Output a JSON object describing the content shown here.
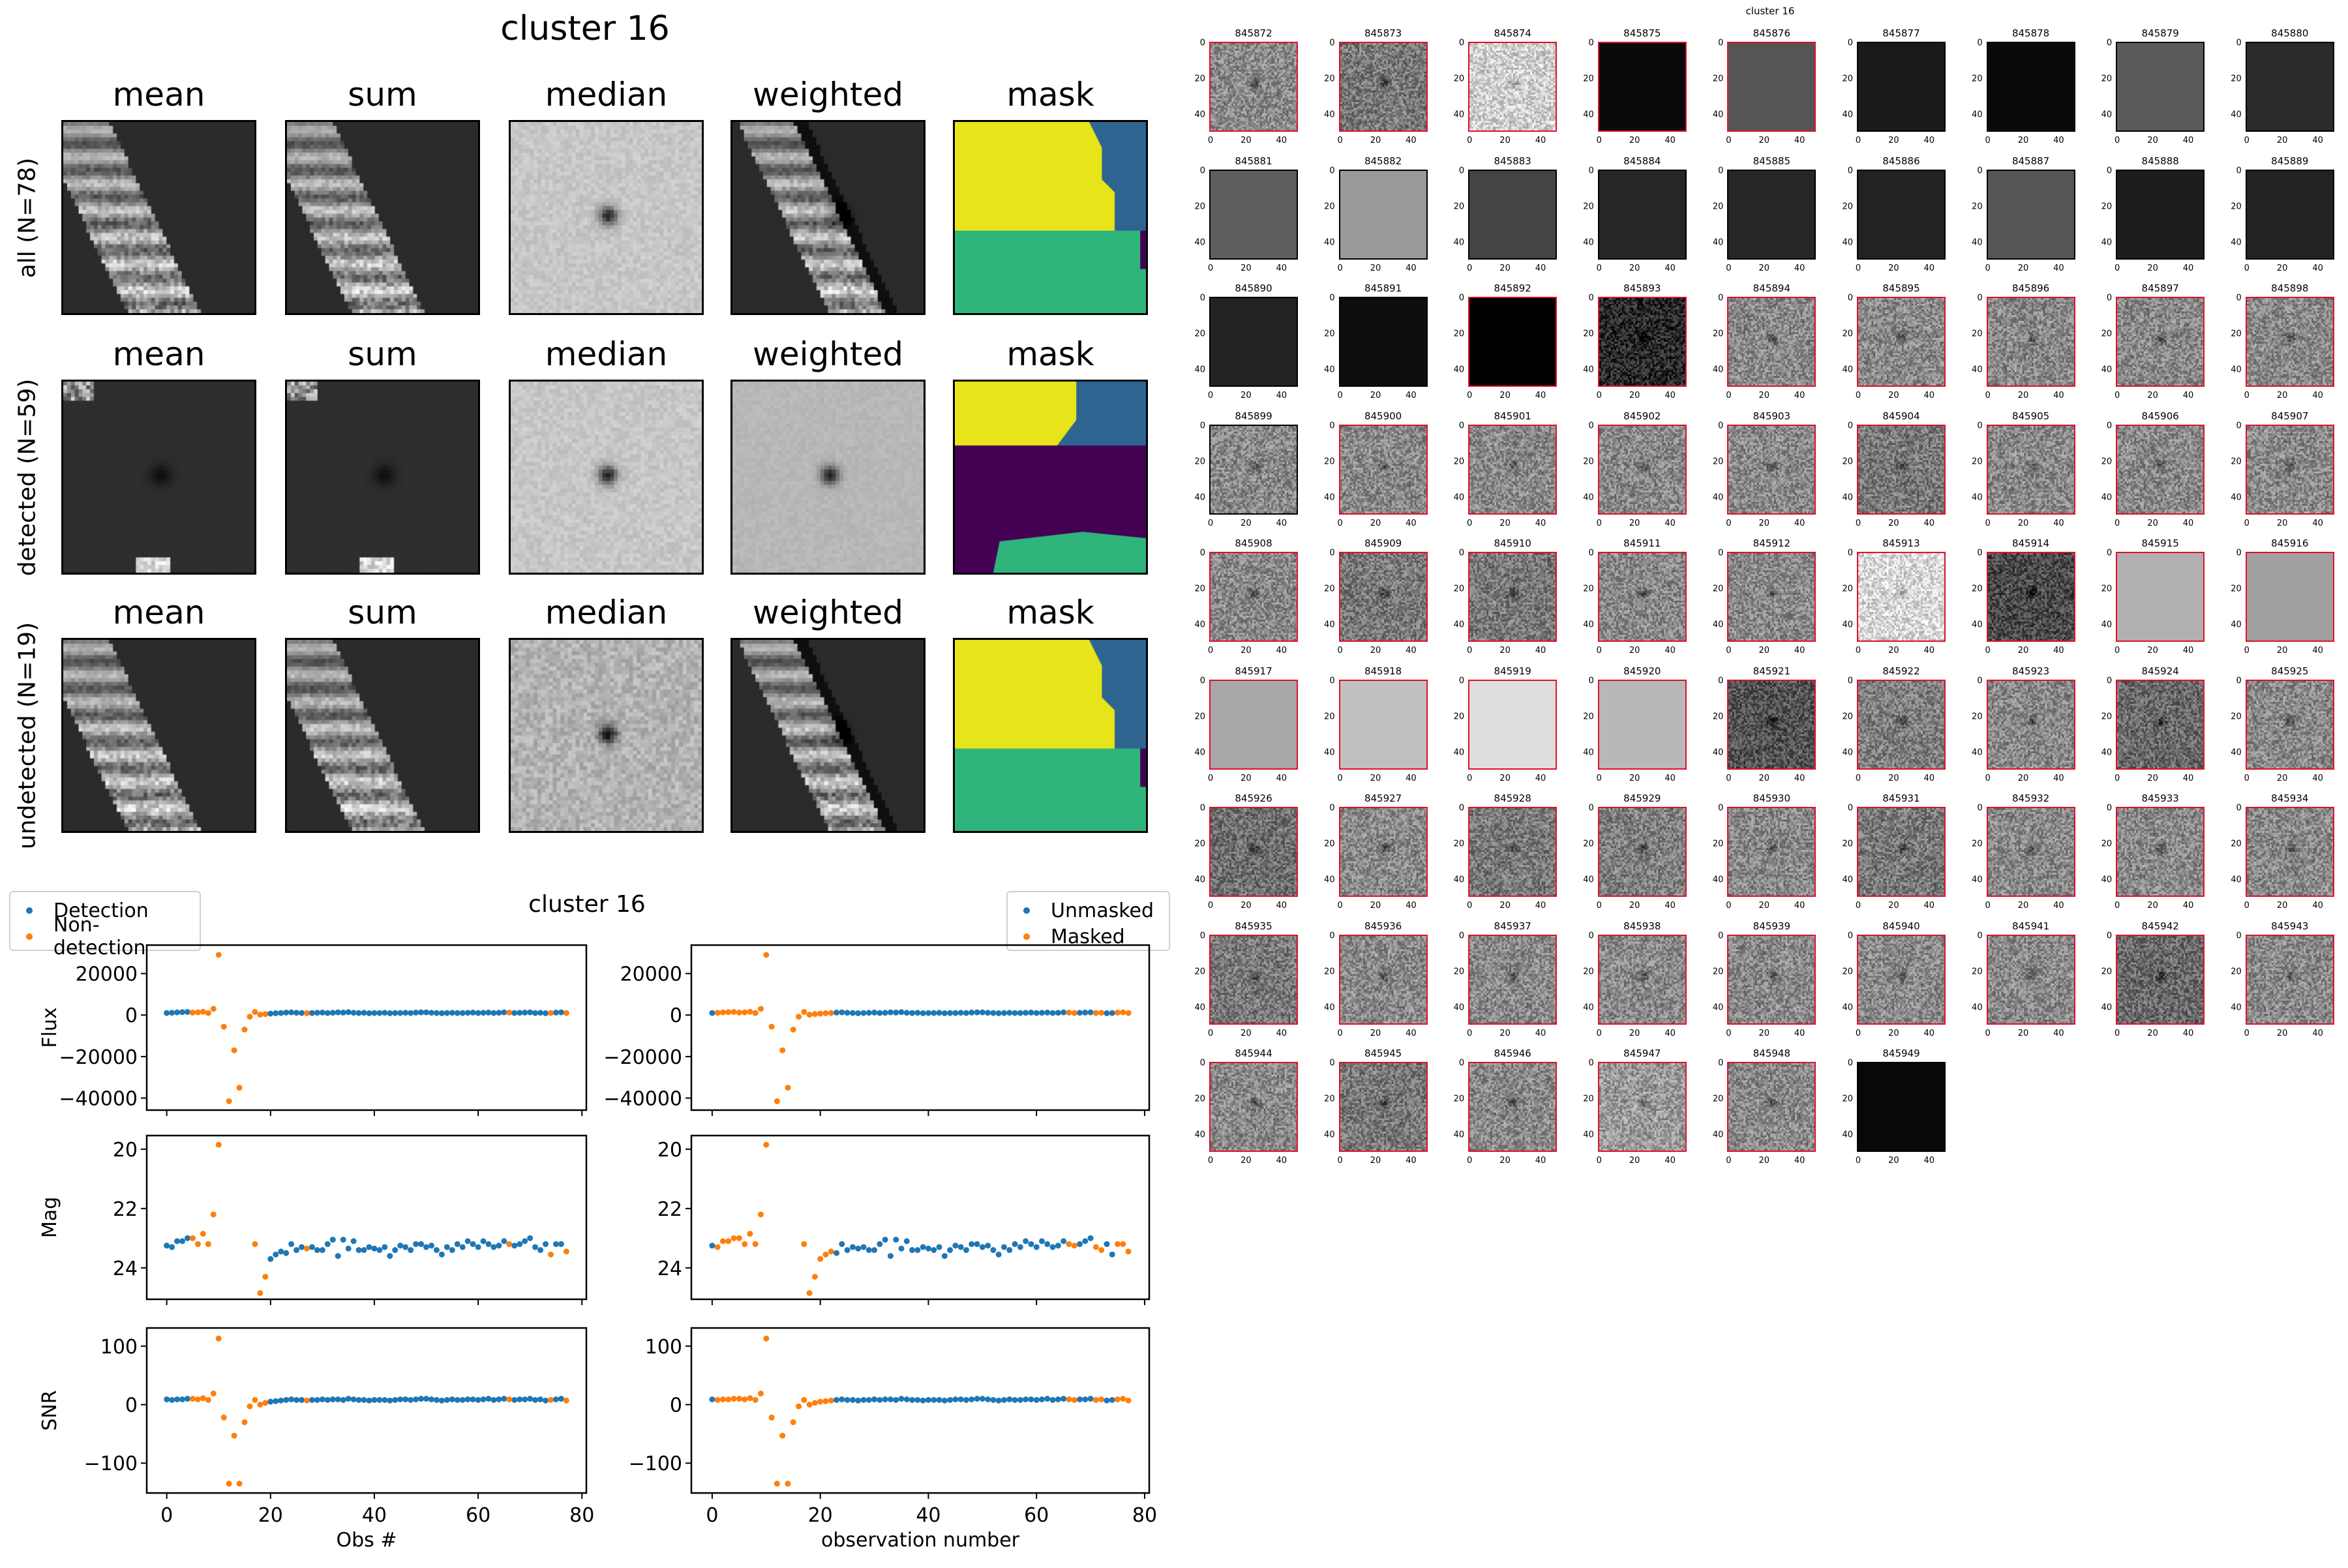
{
  "figure_title": "cluster 16",
  "column_titles": [
    "mean",
    "sum",
    "median",
    "weighted",
    "mask"
  ],
  "row_labels": [
    "all (N=78)",
    "detected (N=59)",
    "undetected (N=19)"
  ],
  "colors": {
    "detection": "#1f77b4",
    "nondetection": "#ff7f0e",
    "red_border": "#e0102a"
  },
  "chart_data": {
    "type": "scatter",
    "title": "cluster 16",
    "x": "0..77",
    "xlabels": [
      "Obs #",
      "observation number"
    ],
    "xlim": [
      -3.85,
      80.85
    ],
    "xticks": [
      0,
      20,
      40,
      60,
      80
    ],
    "legends": [
      {
        "position": "top-left",
        "entries": [
          "Detection",
          "Non-detection"
        ]
      },
      {
        "position": "top-right",
        "entries": [
          "Unmasked",
          "Masked"
        ]
      }
    ],
    "class_strings": {
      "detection_left": "000001111111111111110000000100000000000000000000000000000000000000100000001001",
      "mask_right": "011111111111111111111110000000000000000000000000000000000000000000110001100111"
    },
    "panels": [
      {
        "ylabel": "Flux",
        "ylim": [
          -45800,
          33700
        ],
        "yticks": [
          20000,
          0,
          -20000,
          -40000
        ],
        "ytick_labels": [
          "20000",
          "0",
          "−20000",
          "−40000"
        ],
        "inverted": false,
        "values": [
          1000,
          1100,
          1300,
          1400,
          1500,
          1200,
          1300,
          1600,
          1000,
          3000,
          29000,
          -5600,
          -41500,
          -17000,
          -35000,
          -7000,
          -800,
          1500,
          200,
          500,
          700,
          900,
          1000,
          1200,
          1300,
          1100,
          1000,
          900,
          1000,
          1100,
          1200,
          1000,
          1100,
          1300,
          1200,
          1400,
          1100,
          1000,
          1100,
          900,
          1000,
          1000,
          1100,
          900,
          1000,
          1000,
          1100,
          1000,
          1200,
          1300,
          1300,
          1100,
          1000,
          900,
          1000,
          1100,
          1000,
          1000,
          1100,
          1200,
          1000,
          1100,
          1200,
          1000,
          1100,
          1300,
          1200,
          1000,
          1100,
          1200,
          1300,
          1000,
          1100,
          900,
          1000,
          1200,
          1300,
          1000
        ]
      },
      {
        "ylabel": "Mag",
        "ylim": [
          25.06,
          19.54
        ],
        "yticks": [
          20,
          22,
          24
        ],
        "ytick_labels": [
          "20",
          "22",
          "24"
        ],
        "inverted": true,
        "values": [
          23.25,
          23.3,
          23.1,
          23.1,
          23.0,
          23.0,
          23.2,
          22.85,
          23.2,
          22.2,
          19.85,
          null,
          null,
          null,
          null,
          null,
          null,
          23.2,
          24.85,
          24.3,
          23.7,
          23.55,
          23.45,
          23.5,
          23.2,
          23.4,
          23.3,
          23.35,
          23.3,
          23.4,
          23.4,
          23.2,
          23.05,
          23.6,
          23.05,
          23.35,
          23.1,
          23.4,
          23.4,
          23.3,
          23.35,
          23.4,
          23.3,
          23.6,
          23.4,
          23.25,
          23.3,
          23.4,
          23.2,
          23.2,
          23.3,
          23.25,
          23.4,
          23.55,
          23.3,
          23.4,
          23.2,
          23.3,
          23.1,
          23.2,
          23.3,
          23.1,
          23.2,
          23.3,
          23.25,
          23.1,
          23.2,
          23.25,
          23.2,
          23.1,
          23.0,
          23.3,
          23.4,
          23.2,
          23.55,
          23.2,
          23.2,
          23.45
        ]
      },
      {
        "ylabel": "SNR",
        "ylim": [
          -151,
          131
        ],
        "yticks": [
          100,
          0,
          -100
        ],
        "ytick_labels": [
          "100",
          "0",
          "−100"
        ],
        "inverted": false,
        "values": [
          9,
          8,
          9,
          9,
          10,
          10,
          9,
          11,
          8,
          19,
          113,
          -22,
          -135,
          -53,
          -135,
          -30,
          -3,
          8,
          0,
          3,
          5,
          6,
          7,
          8,
          9,
          8,
          8,
          7,
          8,
          8,
          9,
          8,
          9,
          9,
          8,
          10,
          9,
          8,
          8,
          7,
          8,
          8,
          8,
          7,
          8,
          9,
          9,
          8,
          9,
          10,
          10,
          9,
          8,
          7,
          8,
          9,
          8,
          8,
          9,
          9,
          8,
          9,
          10,
          8,
          9,
          10,
          9,
          8,
          9,
          9,
          10,
          8,
          9,
          7,
          8,
          9,
          10,
          7
        ]
      }
    ]
  },
  "mosaic": {
    "title": "cluster 16",
    "tick_labels_y": [
      "0",
      "20",
      "40"
    ],
    "tick_labels_x": [
      "0",
      "20",
      "40"
    ],
    "thumbnails": [
      {
        "id": "845872",
        "tone": "#8a8a8a",
        "noise": 1,
        "red": 1
      },
      {
        "id": "845873",
        "tone": "#7a7a7a",
        "noise": 1,
        "red": 1
      },
      {
        "id": "845874",
        "tone": "#d0d0d0",
        "noise": 1,
        "red": 1
      },
      {
        "id": "845875",
        "tone": "#0a0a0a",
        "noise": 0,
        "red": 1
      },
      {
        "id": "845876",
        "tone": "#555555",
        "noise": 0,
        "red": 1
      },
      {
        "id": "845877",
        "tone": "#1a1a1a",
        "noise": 0,
        "red": 0
      },
      {
        "id": "845878",
        "tone": "#0a0a0a",
        "noise": 0,
        "red": 0
      },
      {
        "id": "845879",
        "tone": "#5a5a5a",
        "noise": 0,
        "red": 0
      },
      {
        "id": "845880",
        "tone": "#2a2a2a",
        "noise": 0,
        "red": 0
      },
      {
        "id": "845881",
        "tone": "#5e5e5e",
        "noise": 0,
        "red": 0
      },
      {
        "id": "845882",
        "tone": "#999999",
        "noise": 0,
        "red": 0
      },
      {
        "id": "845883",
        "tone": "#444444",
        "noise": 0,
        "red": 0
      },
      {
        "id": "845884",
        "tone": "#262626",
        "noise": 0,
        "red": 0
      },
      {
        "id": "845885",
        "tone": "#262626",
        "noise": 0,
        "red": 0
      },
      {
        "id": "845886",
        "tone": "#222222",
        "noise": 0,
        "red": 0
      },
      {
        "id": "845887",
        "tone": "#555555",
        "noise": 0,
        "red": 0
      },
      {
        "id": "845888",
        "tone": "#1c1c1c",
        "noise": 0,
        "red": 0
      },
      {
        "id": "845889",
        "tone": "#222222",
        "noise": 0,
        "red": 0
      },
      {
        "id": "845890",
        "tone": "#222222",
        "noise": 0,
        "red": 0
      },
      {
        "id": "845891",
        "tone": "#0d0d0d",
        "noise": 0,
        "red": 0
      },
      {
        "id": "845892",
        "tone": "#000000",
        "noise": 0,
        "red": 1
      },
      {
        "id": "845893",
        "tone": "#2a2a2a",
        "noise": 1,
        "red": 1
      },
      {
        "id": "845894",
        "tone": "#8a8a8a",
        "noise": 1,
        "red": 1
      },
      {
        "id": "845895",
        "tone": "#8a8a8a",
        "noise": 1,
        "red": 1
      },
      {
        "id": "845896",
        "tone": "#8a8a8a",
        "noise": 1,
        "red": 1
      },
      {
        "id": "845897",
        "tone": "#8a8a8a",
        "noise": 1,
        "red": 1
      },
      {
        "id": "845898",
        "tone": "#8a8a8a",
        "noise": 1,
        "red": 1
      },
      {
        "id": "845899",
        "tone": "#8a8a8a",
        "noise": 1,
        "red": 0
      },
      {
        "id": "845900",
        "tone": "#8a8a8a",
        "noise": 1,
        "red": 1
      },
      {
        "id": "845901",
        "tone": "#8a8a8a",
        "noise": 1,
        "red": 1
      },
      {
        "id": "845902",
        "tone": "#8a8a8a",
        "noise": 1,
        "red": 1
      },
      {
        "id": "845903",
        "tone": "#8a8a8a",
        "noise": 1,
        "red": 1
      },
      {
        "id": "845904",
        "tone": "#7a7a7a",
        "noise": 1,
        "red": 1
      },
      {
        "id": "845905",
        "tone": "#8a8a8a",
        "noise": 1,
        "red": 1
      },
      {
        "id": "845906",
        "tone": "#8a8a8a",
        "noise": 1,
        "red": 1
      },
      {
        "id": "845907",
        "tone": "#8a8a8a",
        "noise": 1,
        "red": 1
      },
      {
        "id": "845908",
        "tone": "#8a8a8a",
        "noise": 1,
        "red": 1
      },
      {
        "id": "845909",
        "tone": "#7a7a7a",
        "noise": 1,
        "red": 1
      },
      {
        "id": "845910",
        "tone": "#7a7a7a",
        "noise": 1,
        "red": 1
      },
      {
        "id": "845911",
        "tone": "#8a8a8a",
        "noise": 1,
        "red": 1
      },
      {
        "id": "845912",
        "tone": "#8a8a8a",
        "noise": 1,
        "red": 1
      },
      {
        "id": "845913",
        "tone": "#d8d8d8",
        "noise": 1,
        "red": 1
      },
      {
        "id": "845914",
        "tone": "#4a4a4a",
        "noise": 1,
        "red": 1
      },
      {
        "id": "845915",
        "tone": "#b0b0b0",
        "noise": 0,
        "red": 1
      },
      {
        "id": "845916",
        "tone": "#a0a0a0",
        "noise": 0,
        "red": 1
      },
      {
        "id": "845917",
        "tone": "#a8a8a8",
        "noise": 0,
        "red": 1
      },
      {
        "id": "845918",
        "tone": "#c0c0c0",
        "noise": 0,
        "red": 1
      },
      {
        "id": "845919",
        "tone": "#dedede",
        "noise": 0,
        "red": 1
      },
      {
        "id": "845920",
        "tone": "#b8b8b8",
        "noise": 0,
        "red": 1
      },
      {
        "id": "845921",
        "tone": "#555555",
        "noise": 1,
        "red": 1
      },
      {
        "id": "845922",
        "tone": "#808080",
        "noise": 1,
        "red": 1
      },
      {
        "id": "845923",
        "tone": "#8a8a8a",
        "noise": 1,
        "red": 1
      },
      {
        "id": "845924",
        "tone": "#6a6a6a",
        "noise": 1,
        "red": 1
      },
      {
        "id": "845925",
        "tone": "#8a8a8a",
        "noise": 1,
        "red": 1
      },
      {
        "id": "845926",
        "tone": "#707070",
        "noise": 1,
        "red": 1
      },
      {
        "id": "845927",
        "tone": "#8a8a8a",
        "noise": 1,
        "red": 1
      },
      {
        "id": "845928",
        "tone": "#7a7a7a",
        "noise": 1,
        "red": 1
      },
      {
        "id": "845929",
        "tone": "#808080",
        "noise": 1,
        "red": 1
      },
      {
        "id": "845930",
        "tone": "#8a8a8a",
        "noise": 1,
        "red": 1
      },
      {
        "id": "845931",
        "tone": "#7a7a7a",
        "noise": 1,
        "red": 1
      },
      {
        "id": "845932",
        "tone": "#8a8a8a",
        "noise": 1,
        "red": 1
      },
      {
        "id": "845933",
        "tone": "#8a8a8a",
        "noise": 1,
        "red": 1
      },
      {
        "id": "845934",
        "tone": "#8a8a8a",
        "noise": 1,
        "red": 1
      },
      {
        "id": "845935",
        "tone": "#7a7a7a",
        "noise": 1,
        "red": 1
      },
      {
        "id": "845936",
        "tone": "#8a8a8a",
        "noise": 1,
        "red": 1
      },
      {
        "id": "845937",
        "tone": "#8a8a8a",
        "noise": 1,
        "red": 1
      },
      {
        "id": "845938",
        "tone": "#8a8a8a",
        "noise": 1,
        "red": 1
      },
      {
        "id": "845939",
        "tone": "#8a8a8a",
        "noise": 1,
        "red": 1
      },
      {
        "id": "845940",
        "tone": "#8a8a8a",
        "noise": 1,
        "red": 1
      },
      {
        "id": "845941",
        "tone": "#8a8a8a",
        "noise": 1,
        "red": 1
      },
      {
        "id": "845942",
        "tone": "#6a6a6a",
        "noise": 1,
        "red": 1
      },
      {
        "id": "845943",
        "tone": "#8a8a8a",
        "noise": 1,
        "red": 1
      },
      {
        "id": "845944",
        "tone": "#8a8a8a",
        "noise": 1,
        "red": 1
      },
      {
        "id": "845945",
        "tone": "#7a7a7a",
        "noise": 1,
        "red": 1
      },
      {
        "id": "845946",
        "tone": "#8a8a8a",
        "noise": 1,
        "red": 1
      },
      {
        "id": "845947",
        "tone": "#9a9a9a",
        "noise": 1,
        "red": 1
      },
      {
        "id": "845948",
        "tone": "#8a8a8a",
        "noise": 1,
        "red": 1
      },
      {
        "id": "845949",
        "tone": "#080808",
        "noise": 0,
        "red": 0
      }
    ]
  }
}
